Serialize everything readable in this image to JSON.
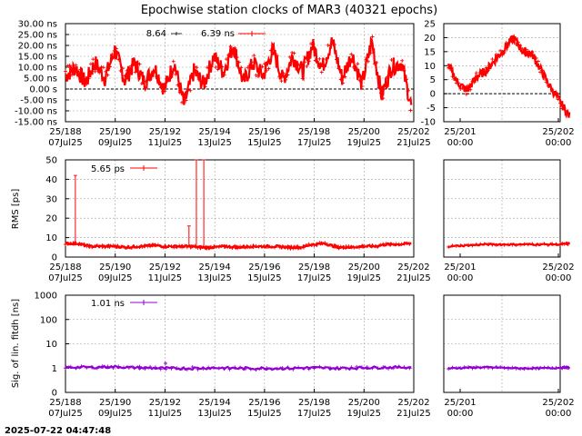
{
  "title": "Epochwise station clocks of MAR3 (40321 epochs)",
  "timestamp": "2025-07-22 04:47:48",
  "colors": {
    "clock": "#ff0000",
    "rms": "#ff0000",
    "sig": "#9400d3",
    "grid": "#a0a0a0",
    "zero": "#000000"
  },
  "x_ticks_main": [
    {
      "top": "25/188",
      "bottom": "07Jul25"
    },
    {
      "top": "25/190",
      "bottom": "09Jul25"
    },
    {
      "top": "25/192",
      "bottom": "11Jul25"
    },
    {
      "top": "25/194",
      "bottom": "13Jul25"
    },
    {
      "top": "25/196",
      "bottom": "15Jul25"
    },
    {
      "top": "25/198",
      "bottom": "17Jul25"
    },
    {
      "top": "25/200",
      "bottom": "19Jul25"
    },
    {
      "top": "25/202",
      "bottom": "21Jul25"
    }
  ],
  "x_ticks_zoom": [
    {
      "top": "25/201",
      "bottom": "00:00"
    },
    {
      "top": "25/202",
      "bottom": "00:00"
    }
  ],
  "chart_data": [
    {
      "type": "line",
      "panel": "clock",
      "ylabel": "",
      "ylim": [
        -15,
        30
      ],
      "yticks": [
        "-15.00 ns",
        "-10.00 ns",
        "-5.00 ns",
        "0.00  s",
        "5.00 ns",
        "10.00 ns",
        "15.00 ns",
        "20.00 ns",
        "25.00 ns",
        "30.00 ns"
      ],
      "legend": {
        "label_a": "8.64",
        "label_b": "6.39 ns"
      },
      "x_days": [
        188.0,
        188.4,
        188.8,
        189.2,
        189.6,
        190.0,
        190.4,
        190.8,
        191.2,
        191.6,
        192.0,
        192.4,
        192.8,
        193.2,
        193.6,
        194.0,
        194.4,
        194.8,
        195.2,
        195.6,
        196.0,
        196.4,
        196.8,
        197.2,
        197.6,
        198.0,
        198.4,
        198.8,
        199.2,
        199.6,
        200.0,
        200.4,
        200.8,
        201.2,
        201.6,
        202.0
      ],
      "values": [
        6,
        10,
        3,
        12,
        5,
        18,
        4,
        12,
        3,
        10,
        0,
        12,
        -7,
        8,
        2,
        15,
        8,
        20,
        3,
        12,
        6,
        18,
        4,
        15,
        8,
        20,
        10,
        22,
        5,
        16,
        2,
        22,
        -3,
        10,
        12,
        -8
      ],
      "zoom": {
        "ylim": [
          -10,
          25
        ],
        "yticks": [
          "-10",
          "-5",
          "0",
          "5",
          "10",
          "15",
          "20",
          "25"
        ],
        "x_days": [
          200.8,
          200.9,
          201.0,
          201.1,
          201.2,
          201.3,
          201.4,
          201.5,
          201.6,
          201.7,
          201.8,
          201.9,
          202.0,
          202.1
        ],
        "values": [
          10,
          4,
          1,
          6,
          8,
          12,
          16,
          20,
          15,
          14,
          8,
          2,
          -3,
          -8
        ]
      }
    },
    {
      "type": "line",
      "panel": "rms",
      "ylabel": "RMS [ps]",
      "ylim": [
        0,
        50
      ],
      "yticks": [
        "0",
        "10",
        "20",
        "30",
        "40",
        "50"
      ],
      "legend": {
        "label": "5.65 ps"
      },
      "x_days": [
        188.0,
        188.5,
        189.0,
        189.5,
        190.0,
        190.5,
        191.0,
        191.5,
        192.0,
        192.5,
        193.0,
        193.5,
        194.0,
        194.5,
        195.0,
        195.5,
        196.0,
        196.5,
        197.0,
        197.5,
        198.0,
        198.5,
        199.0,
        199.5,
        200.0,
        200.5,
        201.0,
        201.5,
        202.0
      ],
      "values": [
        7,
        7,
        5.5,
        5.5,
        5.5,
        5,
        5.5,
        6,
        5.5,
        5.5,
        5.5,
        5,
        5,
        5.5,
        5,
        5.5,
        5.5,
        5.5,
        5,
        5,
        6.5,
        7,
        5,
        5,
        5.5,
        5.5,
        6.5,
        6.5,
        7
      ],
      "spikes": [
        {
          "x": 188.4,
          "v": 42
        },
        {
          "x": 193.0,
          "v": 16
        },
        {
          "x": 193.3,
          "v": 50
        },
        {
          "x": 193.6,
          "v": 50
        }
      ],
      "zoom": {
        "yticks": [],
        "x_days": [
          200.8,
          201.0,
          201.2,
          201.4,
          201.6,
          201.8,
          202.0,
          202.1
        ],
        "values": [
          5.5,
          6,
          6.5,
          6.5,
          6.5,
          6.5,
          6.5,
          7
        ]
      }
    },
    {
      "type": "line",
      "panel": "sig",
      "ylabel": "Sig. of lin. fitdh [ns]",
      "yscale": "log",
      "yticks": [
        "0",
        "1",
        "10",
        "100",
        "1000"
      ],
      "legend": {
        "label": "1.01 ns"
      },
      "x_days": [
        188.0,
        189.0,
        190.0,
        191.0,
        192.0,
        193.0,
        194.0,
        195.0,
        196.0,
        197.0,
        198.0,
        199.0,
        200.0,
        201.0,
        202.0
      ],
      "values": [
        1.1,
        1.1,
        1.15,
        1.05,
        1.0,
        1.0,
        1.05,
        1.0,
        1.0,
        1.0,
        1.05,
        1.0,
        1.05,
        1.1,
        1.1
      ],
      "spikes": [
        {
          "x": 192.05,
          "v": 1.6
        }
      ],
      "zoom": {
        "x_days": [
          200.8,
          201.0,
          201.2,
          201.4,
          201.6,
          201.8,
          202.0,
          202.1
        ],
        "values": [
          1.0,
          1.05,
          1.1,
          1.05,
          1.0,
          1.0,
          1.05,
          1.1
        ]
      }
    }
  ]
}
